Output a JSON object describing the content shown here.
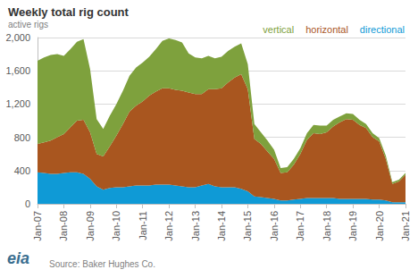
{
  "chart_data": {
    "type": "area",
    "title": "Weekly total rig count",
    "subtitle": "active rigs",
    "annotations": [
      "Source: Baker Hughes Co.",
      "eia"
    ],
    "categories": [
      "Jan-07",
      null,
      null,
      null,
      "Jan-08",
      null,
      null,
      null,
      "Jan-09",
      null,
      null,
      null,
      "Jan-10",
      null,
      null,
      null,
      "Jan-11",
      null,
      null,
      null,
      "Jan-12",
      null,
      null,
      null,
      "Jan-13",
      null,
      null,
      null,
      "Jan-14",
      null,
      null,
      null,
      "Jan-15",
      null,
      null,
      null,
      "Jan-16",
      null,
      null,
      null,
      "Jan-17",
      null,
      null,
      null,
      "Jan-18",
      null,
      null,
      null,
      "Jan-19",
      null,
      null,
      null,
      "Jan-20",
      null,
      null,
      null,
      "Jan-21"
    ],
    "series": [
      {
        "name": "directional",
        "color": "#0f9ad6",
        "values": [
          380,
          370,
          360,
          360,
          370,
          380,
          380,
          360,
          300,
          210,
          170,
          190,
          200,
          200,
          210,
          220,
          220,
          220,
          230,
          230,
          230,
          220,
          210,
          200,
          200,
          220,
          240,
          210,
          200,
          200,
          200,
          180,
          150,
          90,
          80,
          70,
          60,
          40,
          40,
          50,
          60,
          70,
          70,
          70,
          70,
          70,
          60,
          60,
          60,
          60,
          60,
          50,
          50,
          40,
          20,
          20,
          20
        ]
      },
      {
        "name": "horizontal",
        "color": "#a9561f",
        "values": [
          340,
          370,
          400,
          440,
          470,
          540,
          620,
          650,
          560,
          390,
          400,
          500,
          620,
          760,
          900,
          960,
          1010,
          1080,
          1120,
          1160,
          1160,
          1150,
          1150,
          1140,
          1120,
          1100,
          1140,
          1170,
          1190,
          1260,
          1320,
          1380,
          1230,
          690,
          640,
          560,
          480,
          330,
          340,
          420,
          540,
          700,
          780,
          770,
          790,
          860,
          920,
          960,
          950,
          890,
          850,
          750,
          700,
          500,
          220,
          250,
          330
        ]
      },
      {
        "name": "vertical",
        "color": "#7ea13d",
        "values": [
          1000,
          1020,
          1030,
          1000,
          940,
          940,
          950,
          970,
          760,
          420,
          330,
          370,
          380,
          400,
          430,
          460,
          470,
          470,
          510,
          570,
          600,
          600,
          580,
          470,
          440,
          430,
          400,
          370,
          380,
          380,
          370,
          370,
          300,
          180,
          140,
          130,
          110,
          60,
          60,
          70,
          70,
          80,
          100,
          100,
          80,
          80,
          70,
          70,
          70,
          60,
          50,
          50,
          40,
          40,
          20,
          20,
          20
        ]
      }
    ],
    "ylim": [
      0,
      2000
    ],
    "yticks": [
      0,
      400,
      800,
      {
        "value": 1200,
        "label": "1,200"
      },
      {
        "value": 1600,
        "label": "1,600"
      },
      {
        "value": 2000,
        "label": "2,000"
      }
    ],
    "grid": true,
    "stacked": true,
    "legend": "top-right"
  }
}
